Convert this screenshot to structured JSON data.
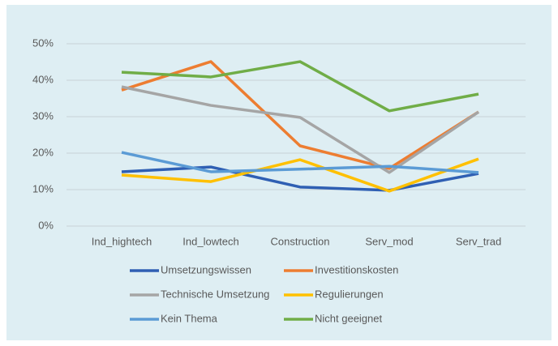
{
  "chart_data": {
    "type": "line",
    "categories": [
      "Ind_hightech",
      "Ind_lowtech",
      "Construction",
      "Serv_mod",
      "Serv_trad"
    ],
    "series": [
      {
        "name": "Umsetzungswissen",
        "color": "#2f5fb3",
        "values": [
          14.9,
          16.2,
          10.7,
          9.8,
          14.4
        ]
      },
      {
        "name": "Investitionskosten",
        "color": "#ed7d31",
        "values": [
          37.3,
          45.1,
          22.0,
          15.8,
          31.3
        ]
      },
      {
        "name": "Technische Umsetzung",
        "color": "#a5a5a5",
        "values": [
          38.2,
          33.1,
          29.8,
          14.7,
          31.3
        ]
      },
      {
        "name": "Regulierungen",
        "color": "#ffc000",
        "values": [
          14.0,
          12.2,
          18.2,
          9.6,
          18.4
        ]
      },
      {
        "name": "Kein Thema",
        "color": "#5b9bd5",
        "values": [
          20.2,
          14.9,
          15.6,
          16.4,
          14.7
        ]
      },
      {
        "name": "Nicht geeignet",
        "color": "#70ad47",
        "values": [
          42.2,
          40.9,
          45.1,
          31.6,
          36.2
        ]
      }
    ],
    "ylim": [
      0,
      50
    ],
    "yticks": [
      {
        "value": 0,
        "label": "0%"
      },
      {
        "value": 10,
        "label": "10%"
      },
      {
        "value": 20,
        "label": "20%"
      },
      {
        "value": 30,
        "label": "30%"
      },
      {
        "value": 40,
        "label": "40%"
      },
      {
        "value": 50,
        "label": "50%"
      }
    ],
    "grid": true,
    "legend": "bottom"
  }
}
